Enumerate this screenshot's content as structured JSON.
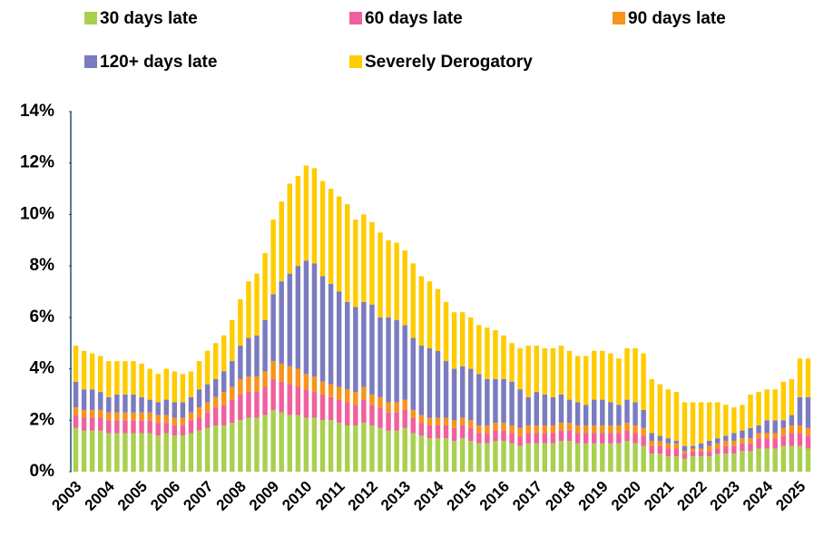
{
  "chart_data": {
    "type": "stacked-bar",
    "categories": [
      "2003",
      null,
      null,
      null,
      "2004",
      null,
      null,
      null,
      "2005",
      null,
      null,
      null,
      "2006",
      null,
      null,
      null,
      "2007",
      null,
      null,
      null,
      "2008",
      null,
      null,
      null,
      "2009",
      null,
      null,
      null,
      "2010",
      null,
      null,
      null,
      "2011",
      null,
      null,
      null,
      "2012",
      null,
      null,
      null,
      "2013",
      null,
      null,
      null,
      "2014",
      null,
      null,
      null,
      "2015",
      null,
      null,
      null,
      "2016",
      null,
      null,
      null,
      "2017",
      null,
      null,
      null,
      "2018",
      null,
      null,
      null,
      "2019",
      null,
      null,
      null,
      "2020",
      null,
      null,
      null,
      "2021",
      null,
      null,
      null,
      "2022",
      null,
      null,
      null,
      "2023",
      null,
      null,
      null,
      "2024",
      null,
      null,
      null,
      "2025",
      null
    ],
    "series": [
      {
        "name": "30 days late",
        "color": "#a9d04f",
        "values": [
          1.7,
          1.6,
          1.6,
          1.6,
          1.5,
          1.5,
          1.5,
          1.5,
          1.5,
          1.5,
          1.4,
          1.5,
          1.4,
          1.4,
          1.5,
          1.6,
          1.7,
          1.8,
          1.8,
          1.9,
          2.0,
          2.1,
          2.1,
          2.2,
          2.4,
          2.3,
          2.2,
          2.2,
          2.1,
          2.1,
          2.0,
          2.0,
          1.9,
          1.8,
          1.8,
          1.9,
          1.8,
          1.7,
          1.6,
          1.6,
          1.7,
          1.5,
          1.4,
          1.3,
          1.3,
          1.3,
          1.2,
          1.3,
          1.2,
          1.1,
          1.1,
          1.2,
          1.2,
          1.1,
          1.0,
          1.1,
          1.1,
          1.1,
          1.1,
          1.2,
          1.2,
          1.1,
          1.1,
          1.1,
          1.1,
          1.1,
          1.1,
          1.2,
          1.1,
          1.0,
          0.7,
          0.7,
          0.6,
          0.6,
          0.5,
          0.6,
          0.6,
          0.6,
          0.7,
          0.7,
          0.7,
          0.8,
          0.8,
          0.9,
          0.9,
          0.9,
          1.0,
          1.0,
          1.0,
          0.9
        ]
      },
      {
        "name": "60 days late",
        "color": "#f0609e",
        "values": [
          0.5,
          0.5,
          0.5,
          0.5,
          0.5,
          0.5,
          0.5,
          0.5,
          0.5,
          0.5,
          0.5,
          0.4,
          0.4,
          0.4,
          0.5,
          0.5,
          0.6,
          0.7,
          0.8,
          0.9,
          1.0,
          1.0,
          1.0,
          1.1,
          1.2,
          1.2,
          1.2,
          1.1,
          1.1,
          1.0,
          1.0,
          0.9,
          0.9,
          0.9,
          0.8,
          0.9,
          0.8,
          0.8,
          0.7,
          0.7,
          0.7,
          0.6,
          0.5,
          0.5,
          0.5,
          0.5,
          0.5,
          0.5,
          0.5,
          0.4,
          0.4,
          0.4,
          0.4,
          0.4,
          0.4,
          0.4,
          0.4,
          0.4,
          0.4,
          0.4,
          0.4,
          0.4,
          0.4,
          0.4,
          0.4,
          0.4,
          0.4,
          0.4,
          0.4,
          0.4,
          0.3,
          0.3,
          0.3,
          0.3,
          0.2,
          0.2,
          0.2,
          0.2,
          0.2,
          0.3,
          0.3,
          0.3,
          0.3,
          0.4,
          0.4,
          0.4,
          0.4,
          0.5,
          0.5,
          0.5
        ]
      },
      {
        "name": "90 days late",
        "color": "#f7941d",
        "values": [
          0.3,
          0.3,
          0.3,
          0.3,
          0.3,
          0.3,
          0.3,
          0.3,
          0.3,
          0.3,
          0.3,
          0.3,
          0.3,
          0.3,
          0.3,
          0.4,
          0.4,
          0.4,
          0.5,
          0.5,
          0.6,
          0.6,
          0.6,
          0.6,
          0.7,
          0.7,
          0.7,
          0.7,
          0.6,
          0.6,
          0.5,
          0.5,
          0.5,
          0.5,
          0.5,
          0.5,
          0.4,
          0.4,
          0.4,
          0.4,
          0.4,
          0.3,
          0.3,
          0.3,
          0.3,
          0.3,
          0.3,
          0.3,
          0.3,
          0.3,
          0.3,
          0.3,
          0.3,
          0.3,
          0.3,
          0.3,
          0.3,
          0.3,
          0.3,
          0.3,
          0.3,
          0.3,
          0.3,
          0.3,
          0.3,
          0.3,
          0.3,
          0.3,
          0.3,
          0.3,
          0.2,
          0.2,
          0.2,
          0.2,
          0.1,
          0.1,
          0.1,
          0.2,
          0.2,
          0.2,
          0.2,
          0.2,
          0.2,
          0.2,
          0.2,
          0.2,
          0.3,
          0.3,
          0.3,
          0.3
        ]
      },
      {
        "name": "120+ days late",
        "color": "#7b7bc0",
        "values": [
          1.0,
          0.8,
          0.8,
          0.7,
          0.6,
          0.7,
          0.7,
          0.7,
          0.6,
          0.5,
          0.5,
          0.6,
          0.6,
          0.6,
          0.6,
          0.7,
          0.7,
          0.7,
          0.8,
          1.0,
          1.3,
          1.5,
          1.6,
          2.0,
          2.6,
          3.2,
          3.6,
          4.0,
          4.4,
          4.4,
          4.1,
          3.9,
          3.7,
          3.4,
          3.3,
          3.3,
          3.5,
          3.1,
          3.3,
          3.2,
          2.9,
          2.8,
          2.7,
          2.7,
          2.6,
          2.2,
          2.0,
          2.0,
          2.0,
          2.0,
          1.8,
          1.7,
          1.7,
          1.7,
          1.5,
          1.1,
          1.3,
          1.2,
          1.1,
          1.1,
          0.9,
          0.9,
          0.8,
          1.0,
          1.0,
          0.9,
          0.8,
          0.9,
          0.9,
          0.7,
          0.3,
          0.2,
          0.2,
          0.1,
          0.2,
          0.1,
          0.2,
          0.2,
          0.2,
          0.2,
          0.3,
          0.3,
          0.4,
          0.3,
          0.5,
          0.5,
          0.3,
          0.4,
          1.1,
          1.2
        ]
      },
      {
        "name": "Severely Derogatory",
        "color": "#ffcc00",
        "values": [
          1.4,
          1.5,
          1.4,
          1.4,
          1.4,
          1.3,
          1.3,
          1.3,
          1.3,
          1.2,
          1.1,
          1.2,
          1.2,
          1.1,
          1.0,
          1.1,
          1.3,
          1.4,
          1.4,
          1.6,
          1.8,
          2.2,
          2.4,
          2.6,
          2.9,
          3.1,
          3.5,
          3.5,
          3.7,
          3.7,
          3.7,
          3.7,
          3.7,
          3.8,
          3.4,
          3.4,
          3.2,
          3.3,
          3.0,
          3.0,
          2.9,
          2.9,
          2.7,
          2.6,
          2.4,
          2.3,
          2.2,
          2.1,
          2.0,
          1.9,
          2.0,
          1.9,
          1.7,
          1.5,
          1.6,
          2.0,
          1.8,
          1.8,
          1.9,
          1.9,
          1.9,
          1.8,
          1.9,
          1.9,
          1.9,
          1.9,
          1.8,
          2.0,
          2.1,
          2.2,
          2.1,
          2.0,
          1.9,
          1.9,
          1.7,
          1.7,
          1.6,
          1.5,
          1.4,
          1.2,
          1.0,
          1.0,
          1.3,
          1.3,
          1.2,
          1.2,
          1.5,
          1.4,
          1.5,
          1.5
        ]
      }
    ],
    "ylim": [
      0,
      14
    ],
    "yticks": [
      {
        "value": 0,
        "label": "0%"
      },
      {
        "value": 2,
        "label": "2%"
      },
      {
        "value": 4,
        "label": "4%"
      },
      {
        "value": 6,
        "label": "6%"
      },
      {
        "value": 8,
        "label": "8%"
      },
      {
        "value": 10,
        "label": "10%"
      },
      {
        "value": 12,
        "label": "12%"
      },
      {
        "value": 14,
        "label": "14%"
      }
    ],
    "grid": false
  }
}
